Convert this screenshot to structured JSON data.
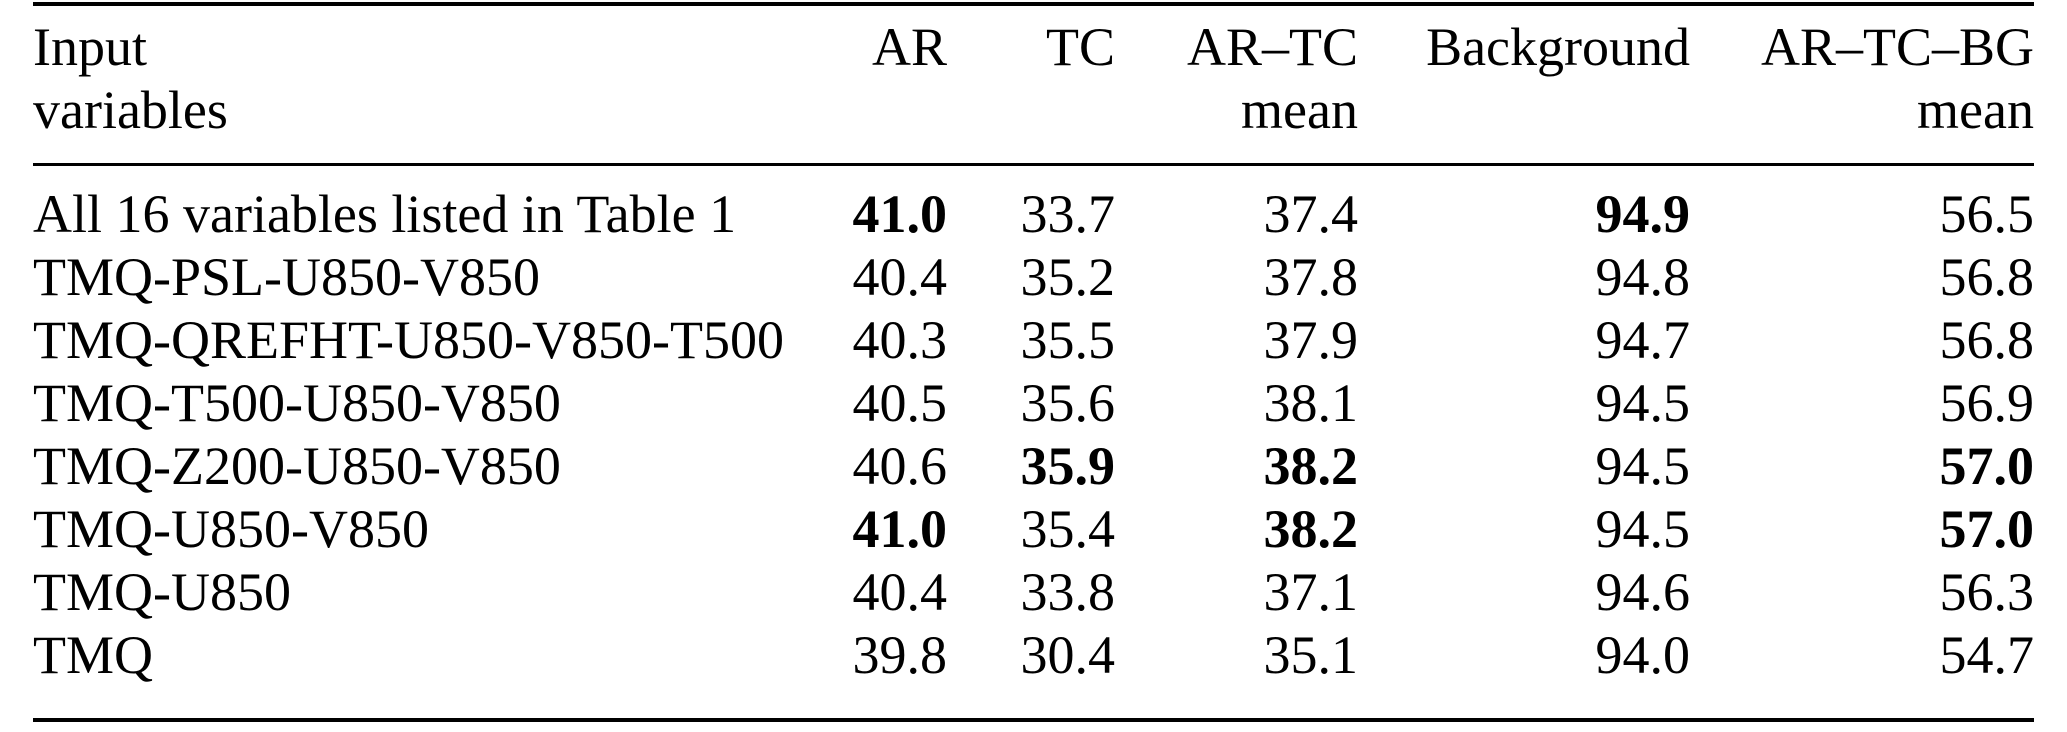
{
  "table": {
    "columns": [
      {
        "line1": "Input",
        "line2": "variables"
      },
      {
        "line1": "AR",
        "line2": ""
      },
      {
        "line1": "TC",
        "line2": ""
      },
      {
        "line1": "AR–TC",
        "line2": "mean"
      },
      {
        "line1": "Background",
        "line2": ""
      },
      {
        "line1": "AR–TC–BG",
        "line2": "mean"
      }
    ],
    "rows": [
      {
        "label": "All 16 variables listed in Table 1",
        "values": [
          "41.0",
          "33.7",
          "37.4",
          "94.9",
          "56.5"
        ],
        "bold": [
          1,
          0,
          0,
          1,
          0
        ]
      },
      {
        "label": "TMQ-PSL-U850-V850",
        "values": [
          "40.4",
          "35.2",
          "37.8",
          "94.8",
          "56.8"
        ],
        "bold": [
          0,
          0,
          0,
          0,
          0
        ]
      },
      {
        "label": "TMQ-QREFHT-U850-V850-T500",
        "values": [
          "40.3",
          "35.5",
          "37.9",
          "94.7",
          "56.8"
        ],
        "bold": [
          0,
          0,
          0,
          0,
          0
        ]
      },
      {
        "label": "TMQ-T500-U850-V850",
        "values": [
          "40.5",
          "35.6",
          "38.1",
          "94.5",
          "56.9"
        ],
        "bold": [
          0,
          0,
          0,
          0,
          0
        ]
      },
      {
        "label": "TMQ-Z200-U850-V850",
        "values": [
          "40.6",
          "35.9",
          "38.2",
          "94.5",
          "57.0"
        ],
        "bold": [
          0,
          1,
          1,
          0,
          1
        ]
      },
      {
        "label": "TMQ-U850-V850",
        "values": [
          "41.0",
          "35.4",
          "38.2",
          "94.5",
          "57.0"
        ],
        "bold": [
          1,
          0,
          1,
          0,
          1
        ]
      },
      {
        "label": "TMQ-U850",
        "values": [
          "40.4",
          "33.8",
          "37.1",
          "94.6",
          "56.3"
        ],
        "bold": [
          0,
          0,
          0,
          0,
          0
        ]
      },
      {
        "label": "TMQ",
        "values": [
          "39.8",
          "30.4",
          "35.1",
          "94.0",
          "54.7"
        ],
        "bold": [
          0,
          0,
          0,
          0,
          0
        ]
      }
    ],
    "colors": {
      "text": "#000000",
      "rule": "#000000",
      "background": "#ffffff"
    }
  }
}
